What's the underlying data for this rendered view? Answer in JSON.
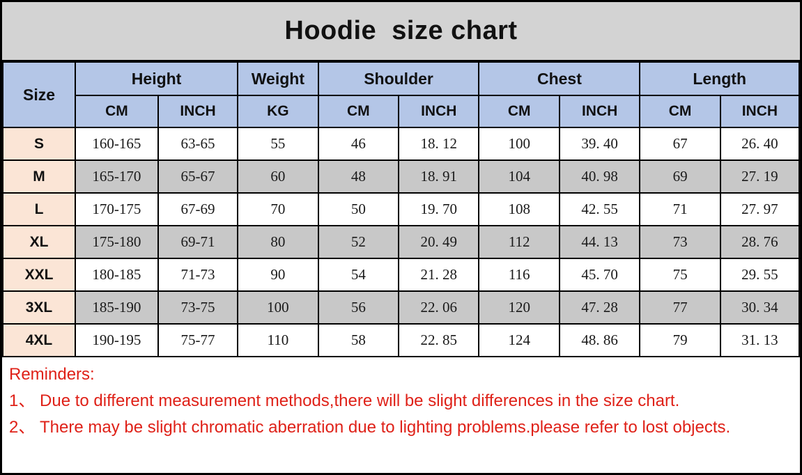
{
  "title": "Hoodie  size chart",
  "colors": {
    "title_background": "#d3d3d3",
    "header_background": "#b4c6e7",
    "size_column_background": "#fbe5d6",
    "alternate_row_background": "#c8c8c8",
    "grid_border": "#000000",
    "reminder_text": "#df2118"
  },
  "table": {
    "column_groups": [
      {
        "label": "Size"
      },
      {
        "label": "Height",
        "sub": [
          "CM",
          "INCH"
        ]
      },
      {
        "label": "Weight",
        "sub": [
          "KG"
        ]
      },
      {
        "label": "Shoulder",
        "sub": [
          "CM",
          "INCH"
        ]
      },
      {
        "label": "Chest",
        "sub": [
          "CM",
          "INCH"
        ]
      },
      {
        "label": "Length",
        "sub": [
          "CM",
          "INCH"
        ]
      }
    ],
    "rows": [
      {
        "size": "S",
        "values": [
          "160-165",
          "63-65",
          "55",
          "46",
          "18. 12",
          "100",
          "39. 40",
          "67",
          "26. 40"
        ]
      },
      {
        "size": "M",
        "values": [
          "165-170",
          "65-67",
          "60",
          "48",
          "18. 91",
          "104",
          "40. 98",
          "69",
          "27. 19"
        ]
      },
      {
        "size": "L",
        "values": [
          "170-175",
          "67-69",
          "70",
          "50",
          "19. 70",
          "108",
          "42. 55",
          "71",
          "27. 97"
        ]
      },
      {
        "size": "XL",
        "values": [
          "175-180",
          "69-71",
          "80",
          "52",
          "20. 49",
          "112",
          "44. 13",
          "73",
          "28. 76"
        ]
      },
      {
        "size": "XXL",
        "values": [
          "180-185",
          "71-73",
          "90",
          "54",
          "21. 28",
          "116",
          "45. 70",
          "75",
          "29. 55"
        ]
      },
      {
        "size": "3XL",
        "values": [
          "185-190",
          "73-75",
          "100",
          "56",
          "22. 06",
          "120",
          "47. 28",
          "77",
          "30. 34"
        ]
      },
      {
        "size": "4XL",
        "values": [
          "190-195",
          "75-77",
          "110",
          "58",
          "22. 85",
          "124",
          "48. 86",
          "79",
          "31. 13"
        ]
      }
    ]
  },
  "reminders": {
    "heading": "Reminders:",
    "lines": [
      "1、 Due to different measurement methods,there will be slight differences in the size chart.",
      "2、 There may be slight chromatic aberration due to lighting problems.please refer to lost objects."
    ]
  }
}
